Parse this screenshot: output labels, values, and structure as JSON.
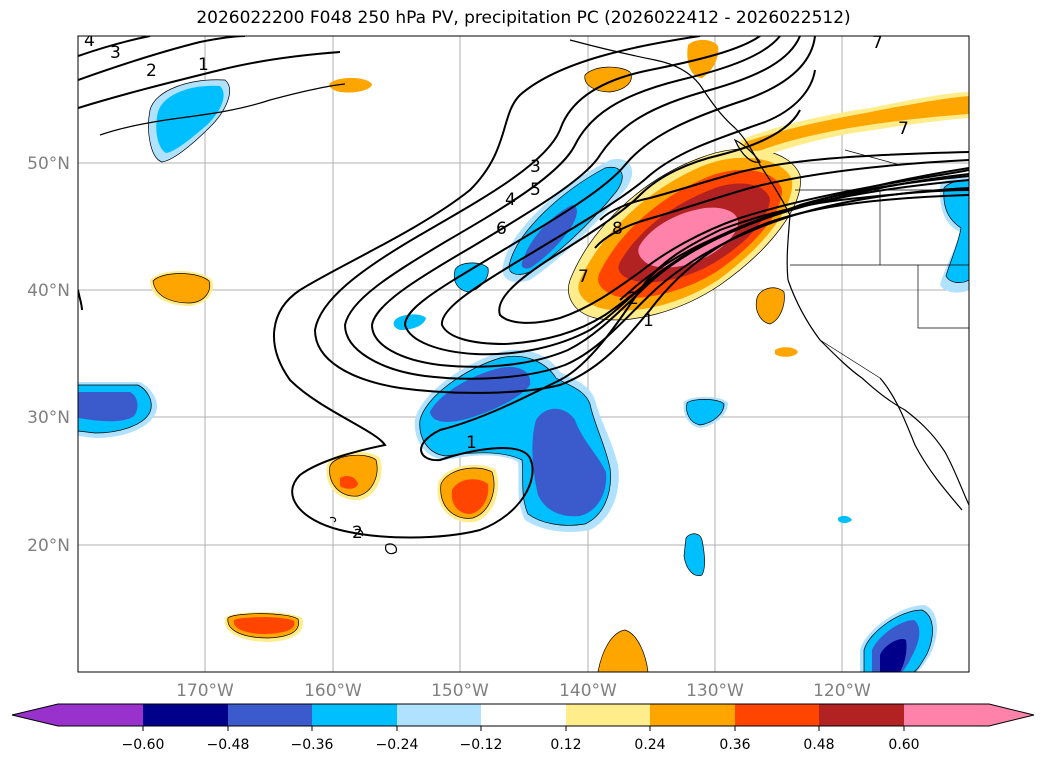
{
  "title": "2026022200 F048 250 hPa PV, precipitation PC (2026022412 - 2026022512)",
  "lat_labels": [
    "50°N",
    "40°N",
    "30°N",
    "20°N"
  ],
  "lon_labels": [
    "170°W",
    "160°W",
    "150°W",
    "140°W",
    "130°W",
    "120°W"
  ],
  "colorbar": {
    "ticks": [
      "−0.60",
      "−0.48",
      "−0.36",
      "−0.24",
      "−0.12",
      "0.12",
      "0.24",
      "0.36",
      "0.48",
      "0.60"
    ],
    "colors": [
      "#9932cc",
      "#00008b",
      "#3b5bcc",
      "#00bfff",
      "#b0e2ff",
      "#ffffff",
      "#ffec8b",
      "#ffa500",
      "#ff4500",
      "#b22222",
      "#ff82ab"
    ]
  },
  "contour_labels": [
    "3",
    "2",
    "1",
    "3",
    "4",
    "5",
    "6",
    "8",
    "7",
    "2",
    "1",
    "1",
    "2",
    "7",
    "7",
    "4"
  ]
}
